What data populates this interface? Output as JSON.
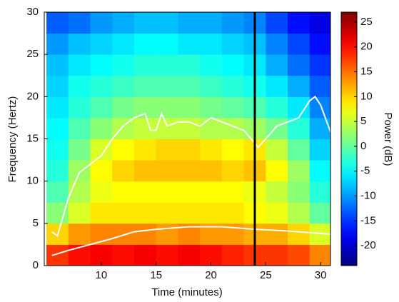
{
  "chart_data": {
    "type": "heatmap",
    "x_label": "Time (minutes)",
    "y_label": "Frequency (Hertz)",
    "xlim": [
      4.8,
      30.9
    ],
    "ylim": [
      0,
      30
    ],
    "xticks": [
      10,
      15,
      20,
      25,
      30
    ],
    "yticks": [
      0,
      5,
      10,
      15,
      20,
      25,
      30
    ],
    "x": [
      6,
      8,
      10,
      12,
      14,
      16,
      18,
      20,
      22,
      24,
      26,
      28,
      30
    ],
    "y": [
      1.25,
      3.75,
      6.25,
      8.75,
      11.25,
      13.75,
      16.25,
      18.75,
      21.25,
      23.75,
      26.25,
      28.75
    ],
    "z": [
      [
        18,
        20,
        21,
        20,
        21,
        20,
        21,
        20,
        19,
        18,
        18,
        17,
        14
      ],
      [
        10,
        13,
        14,
        14,
        14,
        13,
        14,
        13,
        13,
        12,
        12,
        10,
        6
      ],
      [
        2,
        6,
        9,
        9,
        9,
        9,
        9,
        9,
        9,
        8,
        7,
        4,
        0
      ],
      [
        -1,
        4,
        7,
        8,
        8,
        8,
        8,
        8,
        8,
        7,
        5,
        2,
        -3
      ],
      [
        -3,
        3,
        8,
        10,
        11,
        11,
        11,
        11,
        10,
        11,
        8,
        3,
        -5
      ],
      [
        -4,
        1,
        6,
        8,
        9,
        10,
        10,
        9,
        8,
        9,
        5,
        0,
        -7
      ],
      [
        -5,
        -1,
        2,
        4,
        5,
        5,
        5,
        4,
        4,
        3,
        1,
        -3,
        -9
      ],
      [
        -6,
        -3,
        -1,
        1,
        2,
        2,
        2,
        1,
        0,
        -1,
        -3,
        -6,
        -11
      ],
      [
        -7,
        -4,
        -3,
        -2,
        -1,
        -1,
        -1,
        -2,
        -3,
        -4,
        -6,
        -9,
        -13
      ],
      [
        -8,
        -6,
        -5,
        -4,
        -3,
        -3,
        -3,
        -4,
        -5,
        -6,
        -9,
        -12,
        -15
      ],
      [
        -10,
        -8,
        -7,
        -6,
        -5,
        -5,
        -6,
        -6,
        -7,
        -8,
        -11,
        -14,
        -17
      ],
      [
        -13,
        -12,
        -10,
        -9,
        -8,
        -8,
        -9,
        -9,
        -10,
        -11,
        -14,
        -17,
        -19
      ]
    ],
    "series": [
      {
        "color": "#ffffff",
        "x": [
          5.5,
          6,
          7,
          8,
          9,
          10,
          11,
          12,
          13,
          14,
          14.5,
          15,
          15.5,
          16,
          17,
          18,
          19,
          20,
          21,
          22,
          23,
          24,
          24.3,
          25,
          26,
          27,
          28,
          29,
          29.5,
          30,
          31
        ],
        "values": [
          4,
          3.5,
          8,
          11,
          12,
          13,
          15,
          16.5,
          17.5,
          18,
          16,
          16,
          18,
          16.5,
          17,
          17,
          16.5,
          17.5,
          17,
          16.5,
          16,
          14.5,
          14,
          15,
          16.5,
          17,
          17.5,
          19.5,
          20,
          19,
          15.5
        ]
      },
      {
        "color": "#ffffff",
        "x": [
          5.5,
          7,
          9,
          11,
          13,
          15,
          18,
          21,
          24,
          27,
          30,
          31
        ],
        "values": [
          1.2,
          1.8,
          2.5,
          3.2,
          4,
          4.3,
          4.6,
          4.6,
          4.3,
          4.1,
          3.8,
          3.7
        ]
      }
    ],
    "vline": {
      "x": 24,
      "color": "#000000"
    },
    "colorbar": {
      "label": "Power (dB)",
      "clim": [
        -24,
        27
      ],
      "ticks": [
        -20,
        -15,
        -10,
        -5,
        0,
        5,
        10,
        15,
        20,
        25
      ]
    }
  }
}
